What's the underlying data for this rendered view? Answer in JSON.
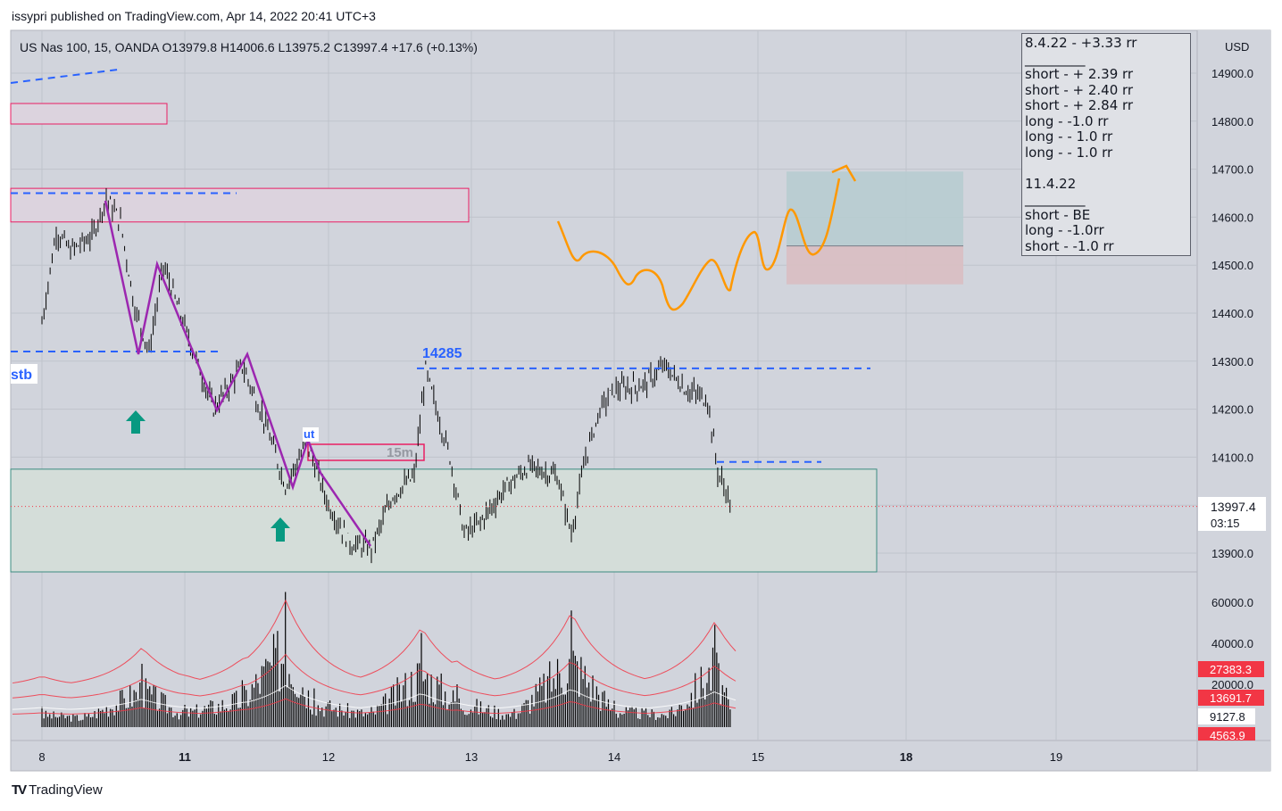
{
  "header": {
    "published_by": "issypri published on TradingView.com, Apr 14, 2022 20:41 UTC+3"
  },
  "symbol": {
    "info": "US Nas 100, 15, OANDA  O13979.8  H14006.6  L13975.2  C13997.4  +17.6 (+0.13%)"
  },
  "price_axis": {
    "currency": "USD",
    "ticks": [
      "14900.0",
      "14800.0",
      "14700.0",
      "14600.0",
      "14500.0",
      "14400.0",
      "14300.0",
      "14200.0",
      "14100.0",
      "13900.0"
    ],
    "current_price": "13997.4",
    "countdown": "03:15"
  },
  "volume_axis": {
    "ticks": [
      "60000.0",
      "40000.0",
      "20000.0"
    ],
    "badges": [
      "27383.3",
      "13691.7",
      "9127.8",
      "4563.9"
    ]
  },
  "time_axis": {
    "labels": [
      "8",
      "11",
      "12",
      "13",
      "14",
      "15",
      "18",
      "19"
    ]
  },
  "annotations": {
    "level_label": "14285",
    "stb_label": "stb",
    "ut_label": "ut",
    "tf_label": "15m"
  },
  "notes": {
    "lines": [
      "8.4.22 - +3.33 rr",
      "_________",
      "short - + 2.39 rr",
      "short - + 2.40 rr",
      "short - + 2.84 rr",
      "long - -1.0 rr",
      "long - - 1.0 rr",
      "long - - 1.0 rr",
      "",
      "11.4.22",
      "_________",
      "short - BE",
      "long - -1.0rr",
      "short - -1.0 rr"
    ]
  },
  "footer": {
    "brand": "TradingView"
  },
  "colors": {
    "background": "#d1d4dc",
    "candle": "#000000",
    "level_line": "#2962ff",
    "zone_border": "#e91e63",
    "zigzag": "#9c27b0",
    "forecast": "#ff9800",
    "arrow": "#089981",
    "volume_bands": "#f23645",
    "badge_red": "#f23645"
  },
  "chart_data": {
    "type": "candlestick",
    "symbol": "US Nas 100",
    "interval": "15",
    "exchange": "OANDA",
    "ohlc_last": {
      "open": 13979.8,
      "high": 14006.6,
      "low": 13975.2,
      "close": 13997.4,
      "change": 17.6,
      "change_pct": 0.13
    },
    "ylim": [
      13870,
      14960
    ],
    "x_days": [
      "8",
      "11",
      "12",
      "13",
      "14",
      "15",
      "18",
      "19"
    ],
    "close_path": [
      {
        "x": 8.0,
        "y": 14380
      },
      {
        "x": 8.1,
        "y": 14570
      },
      {
        "x": 8.2,
        "y": 14530
      },
      {
        "x": 8.35,
        "y": 14560
      },
      {
        "x": 8.45,
        "y": 14640
      },
      {
        "x": 8.55,
        "y": 14590
      },
      {
        "x": 8.65,
        "y": 14410
      },
      {
        "x": 8.75,
        "y": 14320
      },
      {
        "x": 8.85,
        "y": 14500
      },
      {
        "x": 11.0,
        "y": 14370
      },
      {
        "x": 11.2,
        "y": 14200
      },
      {
        "x": 11.4,
        "y": 14290
      },
      {
        "x": 11.55,
        "y": 14180
      },
      {
        "x": 11.7,
        "y": 14040
      },
      {
        "x": 11.85,
        "y": 14130
      },
      {
        "x": 12.0,
        "y": 14000
      },
      {
        "x": 12.15,
        "y": 13920
      },
      {
        "x": 12.3,
        "y": 13910
      },
      {
        "x": 12.45,
        "y": 14020
      },
      {
        "x": 12.6,
        "y": 14060
      },
      {
        "x": 12.68,
        "y": 14280
      },
      {
        "x": 12.85,
        "y": 14100
      },
      {
        "x": 12.95,
        "y": 13940
      },
      {
        "x": 13.05,
        "y": 13960
      },
      {
        "x": 13.25,
        "y": 14040
      },
      {
        "x": 13.4,
        "y": 14080
      },
      {
        "x": 13.6,
        "y": 14060
      },
      {
        "x": 13.7,
        "y": 13940
      },
      {
        "x": 13.8,
        "y": 14100
      },
      {
        "x": 13.9,
        "y": 14200
      },
      {
        "x": 14.0,
        "y": 14240
      },
      {
        "x": 14.2,
        "y": 14250
      },
      {
        "x": 14.35,
        "y": 14290
      },
      {
        "x": 14.5,
        "y": 14240
      },
      {
        "x": 14.65,
        "y": 14220
      },
      {
        "x": 14.72,
        "y": 14070
      },
      {
        "x": 14.82,
        "y": 13997.4
      }
    ],
    "volume_ylim": [
      0,
      70000
    ],
    "volume_path": [
      {
        "x": 8.0,
        "y": 9000
      },
      {
        "x": 8.3,
        "y": 6000
      },
      {
        "x": 8.7,
        "y": 30000
      },
      {
        "x": 9.0,
        "y": 8000
      },
      {
        "x": 11.0,
        "y": 10000
      },
      {
        "x": 11.4,
        "y": 22000
      },
      {
        "x": 11.7,
        "y": 65000
      },
      {
        "x": 11.9,
        "y": 18000
      },
      {
        "x": 12.3,
        "y": 9000
      },
      {
        "x": 12.65,
        "y": 45000
      },
      {
        "x": 12.9,
        "y": 20000
      },
      {
        "x": 13.3,
        "y": 8000
      },
      {
        "x": 13.7,
        "y": 56000
      },
      {
        "x": 14.0,
        "y": 12000
      },
      {
        "x": 14.4,
        "y": 9000
      },
      {
        "x": 14.7,
        "y": 49000
      },
      {
        "x": 14.82,
        "y": 8000
      }
    ],
    "volume_bands": [
      27383.3,
      13691.7,
      9127.8,
      4563.9
    ],
    "levels": [
      {
        "price": 14285,
        "label": "14285"
      },
      {
        "price": 14650
      },
      {
        "price": 14320
      },
      {
        "price": 14090
      }
    ],
    "zones": [
      {
        "from": 14590,
        "to": 14660
      },
      {
        "price_from": 13870,
        "price_to": 14075
      }
    ],
    "position_tool": {
      "entry": 14540,
      "target": 14690,
      "stop": 14460
    }
  },
  "footer_brand": "TradingView"
}
